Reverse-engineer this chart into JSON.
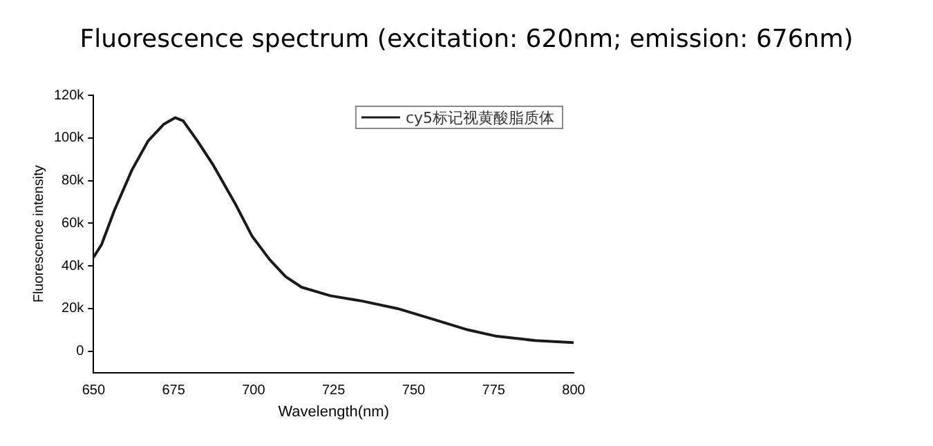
{
  "chart_data": {
    "type": "line",
    "title": "Fluorescence spectrum (excitation: 620nm; emission: 676nm)",
    "xlabel": "Wavelength(nm)",
    "ylabel": "Fluorescence intensity",
    "x": [
      650,
      652.5,
      656.5,
      662,
      667,
      672,
      675.5,
      678,
      682.5,
      687.5,
      694.5,
      699.5,
      705,
      710,
      715,
      724,
      734,
      745,
      755,
      767,
      776,
      788,
      800
    ],
    "series": [
      {
        "name": "cy5标记视黄酸脂质体",
        "color": "#1a1a1a",
        "values": [
          44000,
          50000,
          66000,
          85000,
          98500,
          106500,
          109500,
          108000,
          98500,
          87000,
          68500,
          54000,
          43000,
          35000,
          30000,
          26000,
          23500,
          20000,
          15500,
          10000,
          7000,
          5000,
          4000
        ]
      }
    ],
    "xlim": [
      650,
      800
    ],
    "xticks": [
      650,
      675,
      700,
      725,
      750,
      775,
      800
    ],
    "ylim": [
      -10000,
      120000
    ],
    "yticks": [
      {
        "value": 0,
        "label": "0"
      },
      {
        "value": 20000,
        "label": "20k"
      },
      {
        "value": 40000,
        "label": "40k"
      },
      {
        "value": 60000,
        "label": "60k"
      },
      {
        "value": 80000,
        "label": "80k"
      },
      {
        "value": 100000,
        "label": "100k"
      },
      {
        "value": 120000,
        "label": "120k"
      }
    ],
    "grid": false,
    "legend": "top right",
    "marker": "none",
    "line_style": "solid"
  }
}
